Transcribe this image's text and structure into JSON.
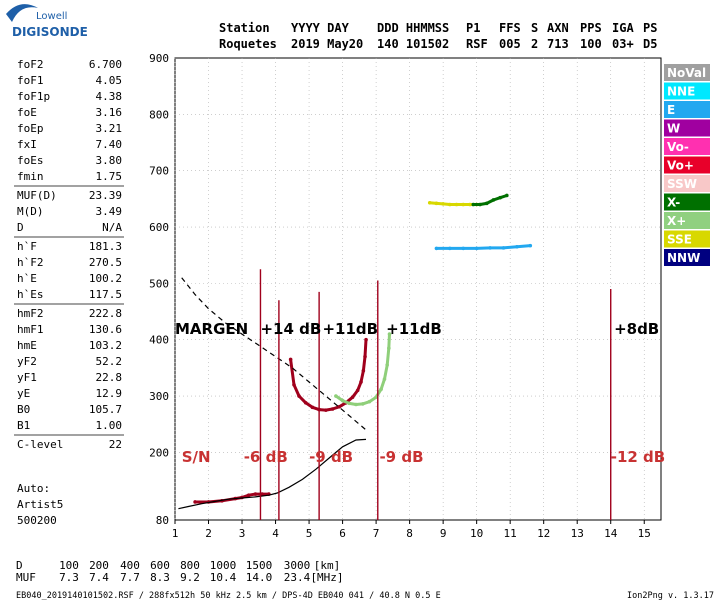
{
  "logo": {
    "line1": "Lowell",
    "line2": "DIGISONDE"
  },
  "header": {
    "row1": [
      "Station",
      "YYYY DAY",
      "DDD HHMMSS",
      "P1",
      "FFS",
      "S",
      "AXN",
      "PPS",
      "IGA",
      "PS"
    ],
    "row2": [
      "Roquetes",
      "2019 May20",
      "140 101502",
      "RSF",
      "005",
      "2",
      "713",
      "100",
      "03+",
      "D5"
    ]
  },
  "params": [
    {
      "name": "foF2",
      "value": "6.700"
    },
    {
      "name": "foF1",
      "value": "4.05"
    },
    {
      "name": "foF1p",
      "value": "4.38"
    },
    {
      "name": "foE",
      "value": "3.16"
    },
    {
      "name": "foEp",
      "value": "3.21"
    },
    {
      "name": "fxI",
      "value": "7.40"
    },
    {
      "name": "foEs",
      "value": "3.80"
    },
    {
      "name": "fmin",
      "value": "1.75"
    },
    {
      "name": "MUF(D)",
      "value": "23.39"
    },
    {
      "name": "M(D)",
      "value": "3.49"
    },
    {
      "name": "D",
      "value": "N/A"
    },
    {
      "name": "h`F",
      "value": "181.3"
    },
    {
      "name": "h`F2",
      "value": "270.5"
    },
    {
      "name": "h`E",
      "value": "100.2"
    },
    {
      "name": "h`Es",
      "value": "117.5"
    },
    {
      "name": "hmF2",
      "value": "222.8"
    },
    {
      "name": "hmF1",
      "value": "130.6"
    },
    {
      "name": "hmE",
      "value": "103.2"
    },
    {
      "name": "yF2",
      "value": "52.2"
    },
    {
      "name": "yF1",
      "value": "22.8"
    },
    {
      "name": "yE",
      "value": "12.9"
    },
    {
      "name": "B0",
      "value": "105.7"
    },
    {
      "name": "B1",
      "value": "1.00"
    },
    {
      "name": "C-level",
      "value": "22"
    }
  ],
  "auto": {
    "label": "Auto:",
    "artist": "Artist5",
    "version": "500200"
  },
  "legend": [
    {
      "label": "NoVal",
      "bg": "#a0a0a0",
      "fg": "#ffffff"
    },
    {
      "label": "NNE",
      "bg": "#00e8ff",
      "fg": "#ffffff"
    },
    {
      "label": "E",
      "bg": "#22a8f0",
      "fg": "#ffffff"
    },
    {
      "label": "W",
      "bg": "#a000a0",
      "fg": "#ffffff"
    },
    {
      "label": "Vo-",
      "bg": "#ff30b0",
      "fg": "#ffffff"
    },
    {
      "label": "Vo+",
      "bg": "#e8002a",
      "fg": "#ffffff"
    },
    {
      "label": "SSW",
      "bg": "#f8c8c8",
      "fg": "#ffffff"
    },
    {
      "label": "X-",
      "bg": "#007000",
      "fg": "#ffffff"
    },
    {
      "label": "X+",
      "bg": "#90d080",
      "fg": "#ffffff"
    },
    {
      "label": "SSE",
      "bg": "#d8d800",
      "fg": "#ffffff"
    },
    {
      "label": "NNW",
      "bg": "#000080",
      "fg": "#ffffff"
    }
  ],
  "chart_data": {
    "type": "scatter",
    "title": "",
    "xlabel": "",
    "ylabel": "",
    "xlim": [
      1,
      15.5
    ],
    "ylim": [
      80,
      900
    ],
    "xticks": [
      1,
      2,
      3,
      4,
      5,
      6,
      7,
      8,
      9,
      10,
      11,
      12,
      13,
      14,
      15
    ],
    "yticks": [
      80,
      200,
      300,
      400,
      500,
      600,
      700,
      800,
      900
    ],
    "grid": true,
    "series": [
      {
        "color": "#a0001c",
        "x": [
          4.45,
          4.55,
          4.7,
          4.9,
          5.1,
          5.3,
          5.5,
          5.7,
          5.9,
          6.1,
          6.3,
          6.45,
          6.55,
          6.62,
          6.67,
          6.7
        ],
        "y": [
          365,
          320,
          300,
          288,
          280,
          276,
          275,
          277,
          281,
          288,
          298,
          310,
          325,
          345,
          370,
          400
        ]
      },
      {
        "color": "#8fcf7a",
        "x": [
          5.8,
          6.0,
          6.2,
          6.4,
          6.6,
          6.8,
          7.0,
          7.15,
          7.25,
          7.33,
          7.38,
          7.4
        ],
        "y": [
          300,
          292,
          287,
          285,
          286,
          290,
          298,
          312,
          330,
          355,
          385,
          410
        ]
      },
      {
        "color": "#a0001c",
        "x": [
          1.6,
          2.0,
          2.4,
          2.8,
          3.0,
          3.2,
          3.4,
          3.6,
          3.8
        ],
        "y": [
          112,
          112,
          114,
          118,
          120,
          124,
          126,
          126,
          126
        ]
      },
      {
        "color": "#d8d800",
        "x": [
          8.6,
          8.8,
          9.0,
          9.2,
          9.4,
          9.6,
          9.8,
          10.0
        ],
        "y": [
          643,
          642,
          641,
          640,
          640,
          640,
          640,
          640
        ]
      },
      {
        "color": "#007000",
        "x": [
          9.9,
          10.1,
          10.3,
          10.5,
          10.7,
          10.9
        ],
        "y": [
          640,
          640,
          642,
          648,
          652,
          656
        ]
      },
      {
        "color": "#22a8f0",
        "x": [
          8.8,
          9.2,
          9.6,
          10.0,
          10.4,
          10.8,
          11.2,
          11.6
        ],
        "y": [
          562,
          562,
          562,
          562,
          563,
          563,
          565,
          567
        ]
      }
    ],
    "profile": {
      "color": "#000000",
      "x": [
        1.1,
        1.4,
        1.8,
        2.2,
        2.6,
        3.0,
        3.4,
        3.8,
        4.05,
        4.4,
        4.8,
        5.2,
        5.6,
        6.0,
        6.4,
        6.7
      ],
      "y": [
        100,
        104,
        109,
        113,
        117,
        119,
        121,
        124,
        128,
        138,
        152,
        170,
        190,
        210,
        222,
        223
      ]
    },
    "profile_extrapolated": {
      "color": "#000000",
      "x": [
        1.2,
        1.6,
        2.0,
        2.5,
        3.0,
        3.5,
        4.0,
        4.5,
        5.0,
        5.5,
        6.0,
        6.4,
        6.7
      ],
      "y": [
        510,
        480,
        455,
        430,
        410,
        390,
        370,
        350,
        325,
        300,
        275,
        255,
        240
      ]
    },
    "vertical_lines": [
      {
        "x": 3.55,
        "ytop": 525
      },
      {
        "x": 4.1,
        "ytop": 470
      },
      {
        "x": 5.3,
        "ytop": 485
      },
      {
        "x": 7.05,
        "ytop": 505
      },
      {
        "x": 14.0,
        "ytop": 490
      }
    ],
    "annotations_black": [
      {
        "text": "MARGEN",
        "x": 1.0,
        "y": 410
      },
      {
        "text": "+14 dB",
        "x": 3.55,
        "y": 410
      },
      {
        "text": "+11dB",
        "x": 5.4,
        "y": 410
      },
      {
        "text": "+11dB",
        "x": 7.3,
        "y": 410
      },
      {
        "text": "+8dB",
        "x": 14.1,
        "y": 410
      }
    ],
    "annotations_red": [
      {
        "text": "S/N",
        "x": 1.2,
        "y": 183
      },
      {
        "text": "-6 dB",
        "x": 3.05,
        "y": 183
      },
      {
        "text": "-9 dB",
        "x": 5.0,
        "y": 183
      },
      {
        "text": "-9 dB",
        "x": 7.1,
        "y": 183
      },
      {
        "text": "-12 dB",
        "x": 14.0,
        "y": 183
      }
    ]
  },
  "muf_table": {
    "row_d": {
      "label": "D",
      "values": [
        "100",
        "200",
        "400",
        "600",
        "800",
        "1000",
        "1500",
        "3000",
        "[km]"
      ]
    },
    "row_muf": {
      "label": "MUF",
      "values": [
        "7.3",
        "7.4",
        "7.7",
        "8.3",
        "9.2",
        "10.4",
        "14.0",
        "23.4",
        "[MHz]"
      ]
    }
  },
  "footer": {
    "text": "EB040_2019140101502.RSF / 288fx512h 50 kHz 2.5 km / DPS-4D EB040 041 / 40.8 N 0.5 E",
    "version": "Ion2Png v. 1.3.17"
  }
}
